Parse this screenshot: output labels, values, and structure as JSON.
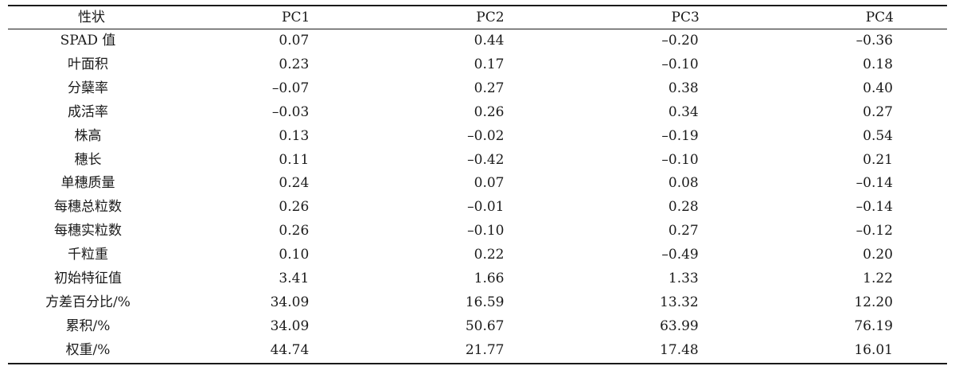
{
  "table": {
    "headers": [
      "性状",
      "PC1",
      "PC2",
      "PC3",
      "PC4"
    ],
    "rows": [
      {
        "trait": "SPAD 值",
        "pc1": "0.07",
        "pc2": "0.44",
        "pc3": "–0.20",
        "pc4": "–0.36"
      },
      {
        "trait": "叶面积",
        "pc1": "0.23",
        "pc2": "0.17",
        "pc3": "–0.10",
        "pc4": "0.18"
      },
      {
        "trait": "分蘖率",
        "pc1": "–0.07",
        "pc2": "0.27",
        "pc3": "0.38",
        "pc4": "0.40"
      },
      {
        "trait": "成活率",
        "pc1": "–0.03",
        "pc2": "0.26",
        "pc3": "0.34",
        "pc4": "0.27"
      },
      {
        "trait": "株高",
        "pc1": "0.13",
        "pc2": "–0.02",
        "pc3": "–0.19",
        "pc4": "0.54"
      },
      {
        "trait": "穗长",
        "pc1": "0.11",
        "pc2": "–0.42",
        "pc3": "–0.10",
        "pc4": "0.21"
      },
      {
        "trait": "单穗质量",
        "pc1": "0.24",
        "pc2": "0.07",
        "pc3": "0.08",
        "pc4": "–0.14"
      },
      {
        "trait": "每穗总粒数",
        "pc1": "0.26",
        "pc2": "–0.01",
        "pc3": "0.28",
        "pc4": "–0.14"
      },
      {
        "trait": "每穗实粒数",
        "pc1": "0.26",
        "pc2": "–0.10",
        "pc3": "0.27",
        "pc4": "–0.12"
      },
      {
        "trait": "千粒重",
        "pc1": "0.10",
        "pc2": "0.22",
        "pc3": "–0.49",
        "pc4": "0.20"
      },
      {
        "trait": "初始特征值",
        "pc1": "3.41",
        "pc2": "1.66",
        "pc3": "1.33",
        "pc4": "1.22"
      },
      {
        "trait": "方差百分比/%",
        "pc1": "34.09",
        "pc2": "16.59",
        "pc3": "13.32",
        "pc4": "12.20"
      },
      {
        "trait": "累积/%",
        "pc1": "34.09",
        "pc2": "50.67",
        "pc3": "63.99",
        "pc4": "76.19"
      },
      {
        "trait": "权重/%",
        "pc1": "44.74",
        "pc2": "21.77",
        "pc3": "17.48",
        "pc4": "16.01"
      }
    ]
  }
}
